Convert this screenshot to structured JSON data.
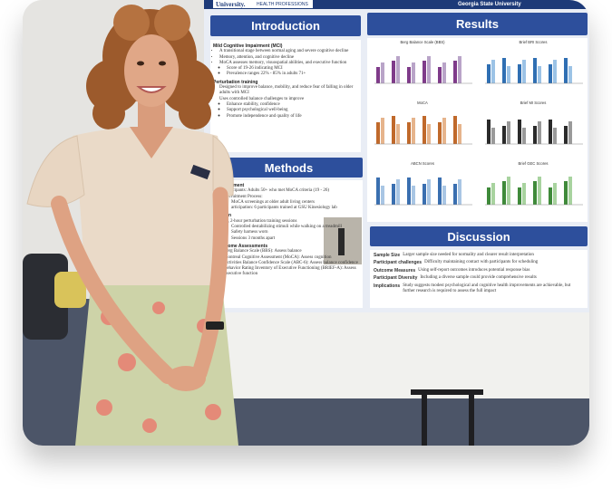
{
  "poster": {
    "header": {
      "logo": "University.",
      "unit": "HEALTH PROFESSIONS",
      "school": "Georgia State University"
    },
    "introduction": {
      "title": "Introduction",
      "groups": [
        {
          "heading": "Mild Cognitive Impairment (MCI)",
          "items": [
            "A transitional stage between normal aging and severe cognitive decline",
            "Memory, attention, and cognitive decline",
            {
              "text": "MoCA assesses memory, visuospatial abilities, and executive function",
              "sub": [
                "Score of 19-26 indicating MCI",
                "Prevalence ranges 22% - 85% in adults 71+"
              ]
            }
          ]
        },
        {
          "heading": "Perturbation training",
          "items": [
            "Designed to improve balance, mobility, and reduce fear of falling in older adults with MCI",
            {
              "text": "Uses controlled balance challenges to improve",
              "sub": [
                "Enhance stability, confidence",
                "Support psychological well-being",
                "Promote independence and quality of life"
              ]
            }
          ]
        }
      ]
    },
    "methods": {
      "title": "Methods",
      "groups": [
        {
          "heading": "Recruitment",
          "items": [
            "Participants: Adults 50+ who met MoCA criteria (19 - 26)",
            {
              "text": "Recruitment Process:",
              "sub": [
                "MoCA screenings at older adult living centers",
                "articipation: 6 participants trained at GSU Kinesiology lab"
              ]
            }
          ]
        },
        {
          "heading": "ention",
          "items": [
            {
              "text": "ks, 2-hour perturbation training sessions",
              "sub": [
                "Controlled destabilizing stimuli while walking on a treadmill",
                "Safety harness worn",
                "Sessions 3 months apart"
              ]
            }
          ]
        },
        {
          "heading": "Outcome Assessments",
          "items": [
            "Berg Balance Scale (BBS): Assess balance",
            "Montreal Cognitive Assessment (MoCA): Assess cognition",
            "Activities Balance Confidence Scale (ABC-6): Assess balance confidence",
            "Behavior Rating Inventory of Executive Functioning (BRIEF-A): Assess executive function"
          ]
        }
      ]
    },
    "results": {
      "title": "Results",
      "charts": [
        "Berg Balance Scale (BBS)",
        "Brief BRI Scores",
        "MoCA",
        "Brief MI Scores",
        "ABCN Scores",
        "Brief GEC Scores"
      ]
    },
    "discussion": {
      "title": "Discussion",
      "rows": [
        {
          "label": "Sample Size",
          "text": "Larger sample size needed for normality and clearer result interpretation"
        },
        {
          "label": "Participant challenges",
          "text": "Difficulty maintaining contact with participants for scheduling"
        },
        {
          "label": "Outcome Measures",
          "text": "Using self-report outcomes introduces potential response bias"
        },
        {
          "label": "Participant Diversity",
          "text": "Including a diverse sample could provide comprehensive results"
        },
        {
          "label": "Implications",
          "text": "Study suggests modest psychological and cognitive health improvements are achievable, but further research is required to assess the full impact"
        }
      ]
    }
  }
}
